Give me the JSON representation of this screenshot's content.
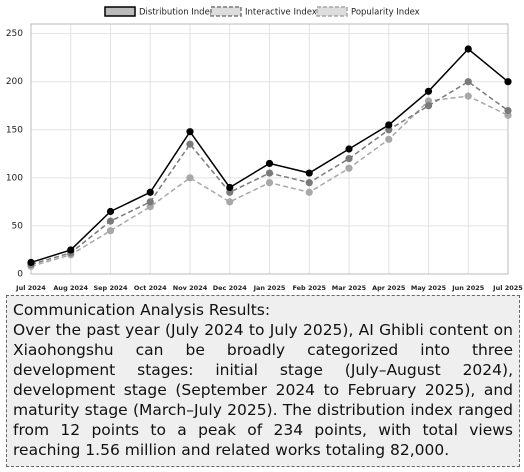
{
  "chart_data": {
    "type": "line",
    "categories": [
      "Jul 2024",
      "Aug 2024",
      "Sep 2024",
      "Oct 2024",
      "Nov 2024",
      "Dec 2024",
      "Jan 2025",
      "Feb 2025",
      "Mar 2025",
      "Apr 2025",
      "May 2025",
      "Jun 2025",
      "Jul 2025"
    ],
    "series": [
      {
        "name": "Distribution Index",
        "color": "#000000",
        "dashed": false,
        "values": [
          12,
          25,
          65,
          85,
          148,
          90,
          115,
          105,
          130,
          155,
          190,
          234,
          200
        ]
      },
      {
        "name": "Interactive Index",
        "color": "#7a7a7a",
        "dashed": true,
        "values": [
          10,
          22,
          55,
          75,
          135,
          85,
          105,
          95,
          120,
          150,
          175,
          200,
          170
        ]
      },
      {
        "name": "Popularity Index",
        "color": "#a8a8a8",
        "dashed": true,
        "values": [
          8,
          20,
          45,
          70,
          100,
          75,
          95,
          85,
          110,
          140,
          180,
          185,
          165
        ]
      }
    ],
    "ylim": [
      0,
      260
    ],
    "yticks": [
      0,
      50,
      100,
      150,
      200,
      250
    ],
    "grid": true,
    "legend": "top"
  },
  "text_box": {
    "title": "Communication Analysis Results:",
    "body": "Over the past year (July 2024 to July 2025), AI Ghibli content on Xiaohongshu can be broadly categorized into three development stages: initial stage (July–August 2024), development stage (September 2024 to February 2025), and maturity stage (March–July 2025). The distribution index ranged from 12 points to a peak of 234 points, with total views reaching 1.56 million and related works totaling 82,000."
  }
}
